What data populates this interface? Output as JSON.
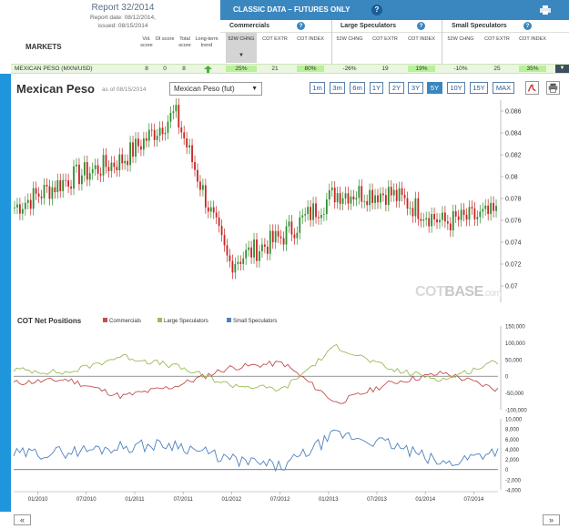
{
  "report": {
    "title": "Report 32/2014",
    "date": "Report date: 08/12/2014,",
    "issued": "issued: 08/15/2014",
    "markets_label": "MARKETS",
    "score_headers": [
      "Vol. score",
      "OI score",
      "Total score",
      "Long-term trend"
    ]
  },
  "classic": {
    "title": "CLASSIC DATA – FUTURES ONLY",
    "help_icon": "?",
    "print_icon": "print-icon",
    "groups": [
      "Commercials",
      "Large Speculators",
      "Small Speculators"
    ],
    "column_headers": [
      "52W CHNG",
      "COT EXTR",
      "COT INDEX"
    ],
    "sort_indicator": "▼"
  },
  "row": {
    "market": "MEXICAN PESO   (MXN/USD)",
    "vol_score": "8",
    "oi_score": "0",
    "total_score": "8",
    "trend_icon": "up-arrow-icon",
    "commercials": [
      "25%",
      "21",
      "80%"
    ],
    "large_specs": [
      "-26%",
      "19",
      "19%"
    ],
    "small_specs": [
      "-10%",
      "25",
      "35%"
    ],
    "dropdown": "▼"
  },
  "chart": {
    "title": "Mexican Peso",
    "as_of": "as of 08/15/2014",
    "selector_value": "Mexican Peso (fut)",
    "ranges": [
      "1m",
      "3m",
      "6m",
      "1Y",
      "2Y",
      "3Y",
      "5Y",
      "10Y",
      "15Y",
      "MAX"
    ],
    "active_range": "5Y",
    "icons": [
      "pdf-icon",
      "print-icon"
    ],
    "watermark_a": "COT",
    "watermark_b": "BASE",
    "watermark_c": ".com",
    "colors": {
      "up": "#2f8f2f",
      "down": "#c82424",
      "commercials": "#c0504d",
      "large": "#9bbb59",
      "small": "#4f81bd"
    }
  },
  "cot_panel": {
    "title": "COT Net Positions",
    "legend": [
      "Commercials",
      "Large Speculators",
      "Small Speculators"
    ]
  },
  "nav": {
    "prev": "«",
    "next": "»"
  },
  "chart_data": [
    {
      "type": "line",
      "title": "Mexican Peso",
      "ylabel": "",
      "x": [
        "01/2010",
        "07/2010",
        "01/2011",
        "07/2011",
        "01/2012",
        "07/2012",
        "01/2013",
        "07/2013",
        "01/2014",
        "07/2014"
      ],
      "series": [
        {
          "name": "Mexican Peso (fut)",
          "values": [
            0.0772,
            0.0798,
            0.0815,
            0.0858,
            0.0721,
            0.0745,
            0.0785,
            0.0785,
            0.0758,
            0.0766
          ]
        }
      ],
      "y_ticks": [
        0.07,
        0.072,
        0.074,
        0.076,
        0.078,
        0.08,
        0.082,
        0.084,
        0.086
      ],
      "ylim": [
        0.0685,
        0.087
      ],
      "grid": false
    },
    {
      "type": "line",
      "title": "COT Net Positions",
      "x": [
        "01/2010",
        "07/2010",
        "01/2011",
        "07/2011",
        "01/2012",
        "07/2012",
        "01/2013",
        "07/2013",
        "01/2014",
        "07/2014"
      ],
      "series": [
        {
          "name": "Commercials",
          "values": [
            -20000,
            -10000,
            -60000,
            -30000,
            25000,
            40000,
            -80000,
            -20000,
            10000,
            -40000
          ]
        },
        {
          "name": "Large Speculators",
          "values": [
            20000,
            10000,
            60000,
            30000,
            -25000,
            -40000,
            90000,
            20000,
            -10000,
            45000
          ]
        }
      ],
      "y_ticks": [
        -100000,
        -50000,
        0,
        50000,
        100000,
        150000
      ],
      "ylim": [
        -100000,
        150000
      ],
      "grid": false
    },
    {
      "type": "line",
      "x": [
        "01/2010",
        "07/2010",
        "01/2011",
        "07/2011",
        "01/2012",
        "07/2012",
        "01/2013",
        "07/2013",
        "01/2014",
        "07/2014"
      ],
      "series": [
        {
          "name": "Small Speculators",
          "values": [
            3000,
            3500,
            4500,
            5000,
            2000,
            500,
            7000,
            5000,
            1000,
            4000
          ]
        }
      ],
      "y_ticks": [
        -4000,
        -2000,
        0,
        2000,
        4000,
        6000,
        8000,
        10000
      ],
      "ylim": [
        -4000,
        10000
      ],
      "grid": false
    }
  ]
}
